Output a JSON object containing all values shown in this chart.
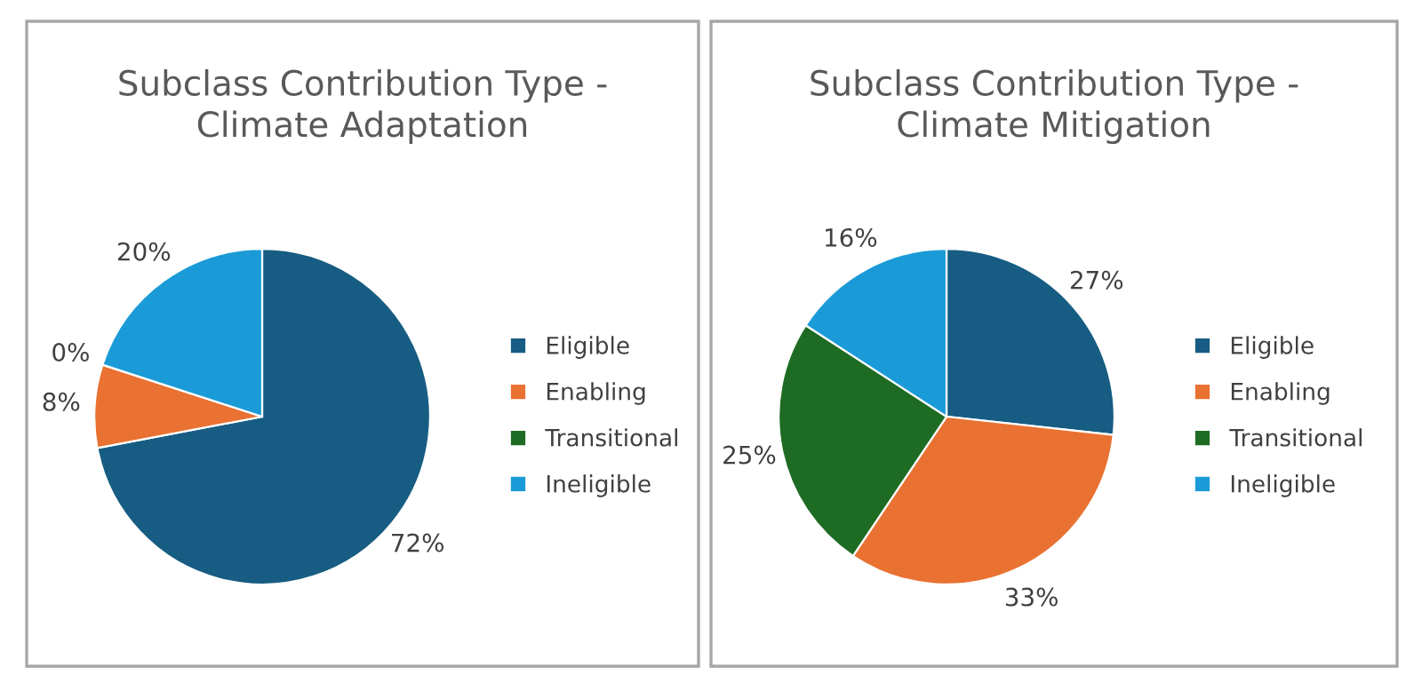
{
  "chart_data": [
    {
      "type": "pie",
      "title": "Subclass Contribution Type -\nClimate Adaptation",
      "categories": [
        "Eligible",
        "Enabling",
        "Transitional",
        "Ineligible"
      ],
      "values": [
        72,
        8,
        0,
        20
      ],
      "value_labels": [
        "72%",
        "8%",
        "0%",
        "20%"
      ],
      "colors": [
        "#175c82",
        "#e97132",
        "#1e6b24",
        "#1a9bd7"
      ],
      "legend": "right"
    },
    {
      "type": "pie",
      "title": "Subclass Contribution Type -\nClimate Mitigation",
      "categories": [
        "Eligible",
        "Enabling",
        "Transitional",
        "Ineligible"
      ],
      "values": [
        27,
        33,
        25,
        16
      ],
      "value_labels": [
        "27%",
        "33%",
        "25%",
        "16%"
      ],
      "colors": [
        "#175c82",
        "#e97132",
        "#1e6b24",
        "#1a9bd7"
      ],
      "legend": "right"
    }
  ]
}
